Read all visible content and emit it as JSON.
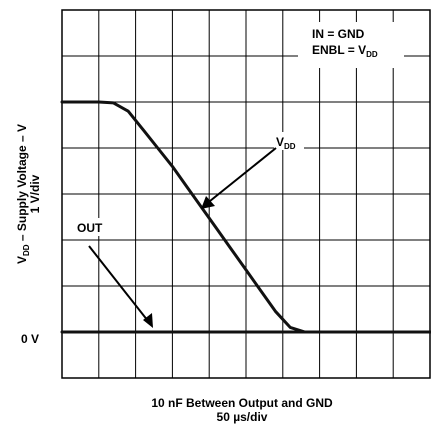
{
  "chart_data": {
    "type": "line",
    "title": "",
    "annotations": {
      "conditions": {
        "in_line": "IN = GND",
        "enbl_prefix": "ENBL = V",
        "enbl_sub": "DD"
      },
      "vdd_label": {
        "main": "V",
        "sub": "DD"
      },
      "out_label": "OUT"
    },
    "ylabel": {
      "prefix": "V",
      "sub": "DD",
      "suffix": " – Supply Voltage – V",
      "scale": "1 V/div"
    },
    "y_zero_label": "0 V",
    "xlabel": "10 nF Between Output and GND",
    "x_scale": "50 µs/div",
    "grid": true,
    "x_divisions": 10,
    "y_divisions": 8,
    "xlim": [
      0,
      500
    ],
    "ylim": [
      -1,
      7
    ],
    "x_units": "µs",
    "y_units": "V",
    "series": [
      {
        "name": "VDD",
        "x": [
          0,
          50,
          70,
          90,
          110,
          130,
          150,
          170,
          190,
          210,
          230,
          250,
          270,
          290,
          310,
          330,
          350,
          370,
          390,
          410,
          430,
          450,
          470,
          500
        ],
        "values": [
          5.0,
          5.0,
          4.98,
          4.8,
          4.4,
          4.0,
          3.6,
          3.15,
          2.7,
          2.25,
          1.8,
          1.35,
          0.9,
          0.45,
          0.1,
          0.0,
          0.0,
          0.0,
          0.0,
          0.0,
          0.0,
          0.0,
          0.0,
          0.0
        ]
      },
      {
        "name": "OUT",
        "x": [
          0,
          50,
          100,
          150,
          200,
          250,
          300,
          350,
          400,
          450,
          500
        ],
        "values": [
          0,
          0,
          0,
          0,
          0,
          0,
          0,
          0,
          0,
          0,
          0
        ]
      }
    ]
  }
}
